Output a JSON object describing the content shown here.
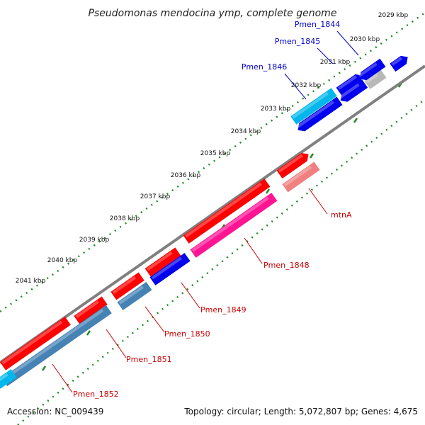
{
  "title": "Pseudomonas mendocina ymp, complete genome",
  "footer": {
    "accession": "Accession: NC_009439",
    "summary": "Topology: circular; Length: 5,072,807 bp; Genes: 4,675"
  },
  "kbp_labels": [
    "2029 kbp",
    "2030 kbp",
    "2031 kbp",
    "2032 kbp",
    "2033 kbp",
    "2034 kbp",
    "2035 kbp",
    "2036 kbp",
    "2037 kbp",
    "2038 kbp",
    "2039 kbp",
    "2040 kbp",
    "2041 kbp"
  ],
  "colors": {
    "red": "#ff0000",
    "pink": "#ff1493",
    "salmon": "#f08080",
    "blue": "#0000ee",
    "steel": "#4682b4",
    "cyan": "#00b7eb",
    "gray": "#b8b8b8",
    "backbone": "#808080",
    "ticks": "#228b22"
  },
  "gene_labels": [
    {
      "name": "Pmen_1844",
      "color": "blue"
    },
    {
      "name": "Pmen_1845",
      "color": "blue"
    },
    {
      "name": "Pmen_1846",
      "color": "blue"
    },
    {
      "name": "mtnA",
      "color": "red"
    },
    {
      "name": "Pmen_1848",
      "color": "red"
    },
    {
      "name": "Pmen_1849",
      "color": "red"
    },
    {
      "name": "Pmen_1850",
      "color": "red"
    },
    {
      "name": "Pmen_1851",
      "color": "red"
    },
    {
      "name": "Pmen_1852",
      "color": "red"
    }
  ]
}
